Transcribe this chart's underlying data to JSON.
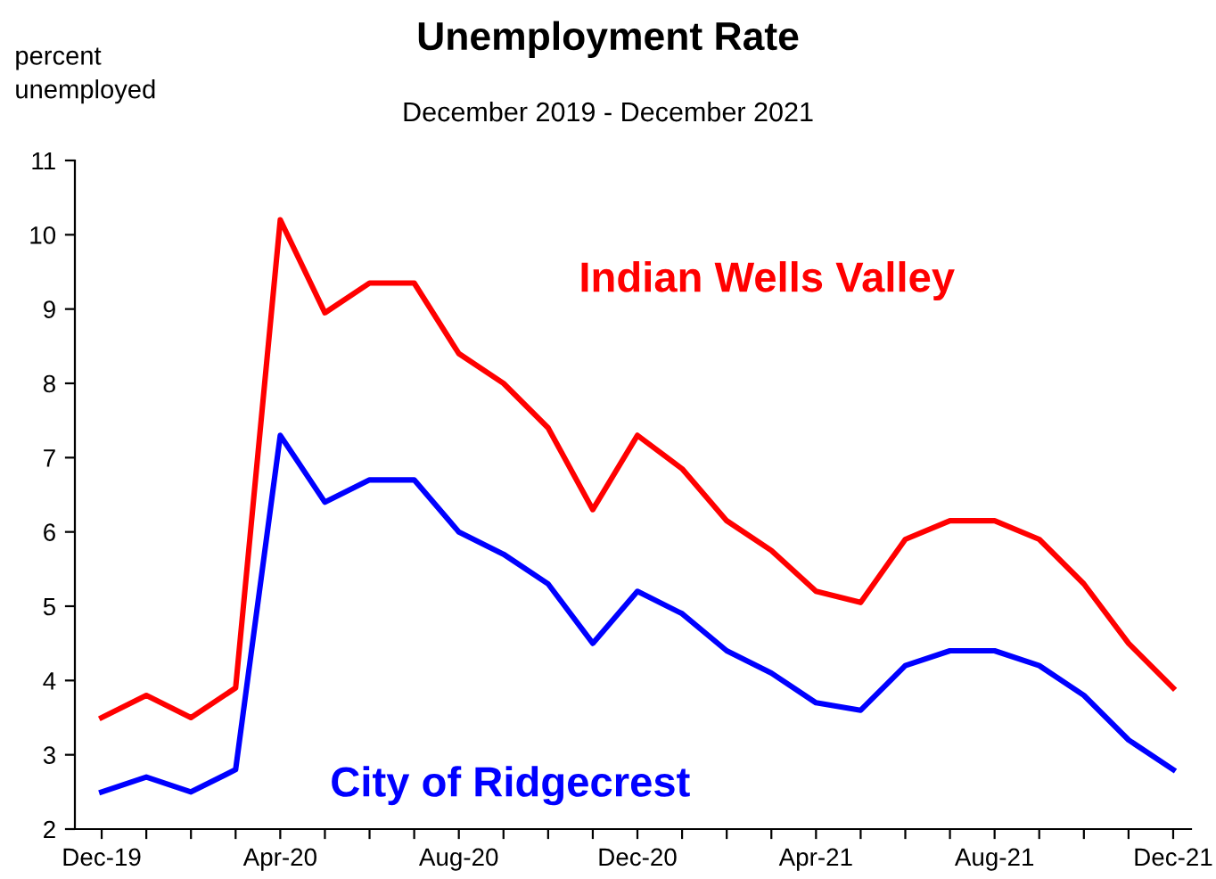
{
  "chart_data": {
    "type": "line",
    "title": "Unemployment Rate",
    "subtitle": "December 2019 - December 2021",
    "ylabel": "percent\nunemployed",
    "categories": [
      "Dec-19",
      null,
      null,
      null,
      "Apr-20",
      null,
      null,
      null,
      "Aug-20",
      null,
      null,
      null,
      "Dec-20",
      null,
      null,
      null,
      "Apr-21",
      null,
      null,
      null,
      "Aug-21",
      null,
      null,
      null,
      "Dec-21"
    ],
    "series": [
      {
        "name": "Indian Wells Valley",
        "color": "#ff0000",
        "values": [
          3.5,
          3.8,
          3.5,
          3.9,
          10.2,
          8.95,
          9.35,
          9.35,
          8.4,
          8.0,
          7.4,
          6.3,
          7.3,
          6.85,
          6.15,
          5.75,
          5.2,
          5.05,
          5.9,
          6.15,
          6.15,
          5.9,
          5.3,
          4.5,
          3.9
        ]
      },
      {
        "name": "City of Ridgecrest",
        "color": "#0000ff",
        "values": [
          2.5,
          2.7,
          2.5,
          2.8,
          7.3,
          6.4,
          6.7,
          6.7,
          6.0,
          5.7,
          5.3,
          4.5,
          5.2,
          4.9,
          4.4,
          4.1,
          3.7,
          3.6,
          4.2,
          4.4,
          4.4,
          4.2,
          3.8,
          3.2,
          2.8
        ]
      }
    ],
    "ylim": [
      2,
      11
    ],
    "yticks": [
      2,
      3,
      4,
      5,
      6,
      7,
      8,
      9,
      10,
      11
    ],
    "grid": false,
    "legend": false,
    "marker": "none",
    "line_style": "solid"
  }
}
